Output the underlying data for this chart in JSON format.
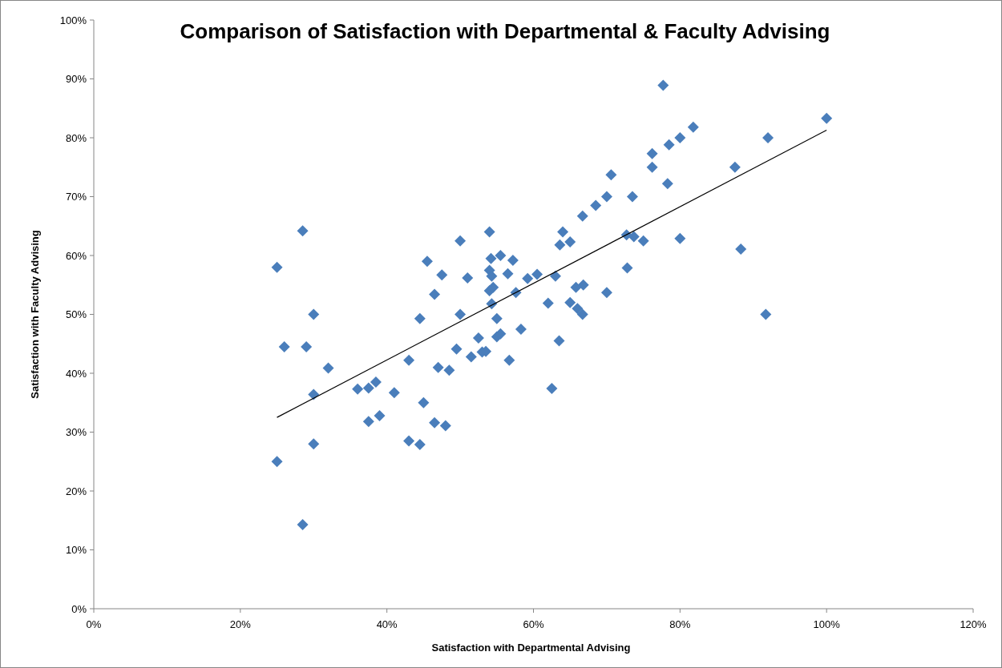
{
  "chart_data": {
    "type": "scatter",
    "title": "Comparison of Satisfaction with Departmental & Faculty Advising",
    "xlabel": "Satisfaction  with Departmental Advising",
    "ylabel": "Satisfaction  with Faculty Advising",
    "xlim": [
      0,
      120
    ],
    "ylim": [
      0,
      100
    ],
    "xticks": [
      {
        "value": 0,
        "label": "0%"
      },
      {
        "value": 20,
        "label": "20%"
      },
      {
        "value": 40,
        "label": "40%"
      },
      {
        "value": 60,
        "label": "60%"
      },
      {
        "value": 80,
        "label": "80%"
      },
      {
        "value": 100,
        "label": "100%"
      },
      {
        "value": 120,
        "label": "120%"
      }
    ],
    "yticks": [
      {
        "value": 0,
        "label": "0%"
      },
      {
        "value": 10,
        "label": "10%"
      },
      {
        "value": 20,
        "label": "20%"
      },
      {
        "value": 30,
        "label": "30%"
      },
      {
        "value": 40,
        "label": "40%"
      },
      {
        "value": 50,
        "label": "50%"
      },
      {
        "value": 60,
        "label": "60%"
      },
      {
        "value": 70,
        "label": "70%"
      },
      {
        "value": 80,
        "label": "80%"
      },
      {
        "value": 90,
        "label": "90%"
      },
      {
        "value": 100,
        "label": "100%"
      }
    ],
    "grid": false,
    "series": [
      {
        "marker": "diamond",
        "color": "#4a7ebb",
        "x": [
          25,
          25,
          26,
          28.5,
          28.5,
          29,
          30,
          30,
          30,
          32,
          36,
          37.5,
          37.5,
          38.5,
          39,
          41,
          43,
          43,
          44.5,
          44.5,
          45,
          45.5,
          46.5,
          46.5,
          47,
          47.5,
          48,
          48.5,
          49.5,
          50,
          50,
          51,
          51.5,
          52.5,
          53,
          53.5,
          54,
          54,
          54,
          54.2,
          54.3,
          54.3,
          54.5,
          55,
          55,
          55.5,
          55.5,
          56.5,
          56.7,
          57.2,
          57.6,
          58.3,
          59.2,
          60.5,
          62,
          62.5,
          63,
          63.5,
          63.6,
          64,
          65,
          65,
          65.8,
          66,
          66.7,
          66.7,
          66.8,
          68.5,
          70,
          70,
          70.6,
          72.7,
          72.8,
          73.5,
          73.7,
          75,
          76.2,
          76.2,
          77.7,
          78.3,
          78.5,
          80,
          80,
          81.8,
          87.5,
          88.3,
          91.7,
          92,
          100
        ],
        "values": [
          58,
          25,
          44.5,
          64.2,
          14.3,
          44.5,
          36.4,
          50,
          28,
          40.9,
          37.3,
          37.5,
          31.8,
          38.5,
          32.8,
          36.7,
          42.2,
          28.5,
          49.3,
          27.9,
          35,
          59,
          53.4,
          31.6,
          41,
          56.7,
          31.1,
          40.5,
          44.1,
          62.5,
          50,
          56.2,
          42.8,
          46,
          43.6,
          43.7,
          64,
          57.5,
          54,
          59.5,
          56.5,
          51.8,
          54.6,
          49.3,
          46.2,
          60,
          46.7,
          56.9,
          42.2,
          59.2,
          53.7,
          47.5,
          56.1,
          56.8,
          51.9,
          37.4,
          56.5,
          45.5,
          61.8,
          64,
          52,
          62.3,
          54.6,
          51,
          66.7,
          50,
          55,
          68.5,
          70,
          53.7,
          73.7,
          63.5,
          57.9,
          70,
          63.2,
          62.5,
          77.3,
          75,
          88.9,
          72.2,
          78.8,
          80,
          62.9,
          81.8,
          75,
          61.1,
          50,
          80,
          83.3
        ]
      },
      {
        "type": "line",
        "marker": "none",
        "line_style": "solid",
        "color": "#000000",
        "x": [
          25,
          100
        ],
        "values": [
          32.5,
          81.3
        ]
      }
    ]
  }
}
